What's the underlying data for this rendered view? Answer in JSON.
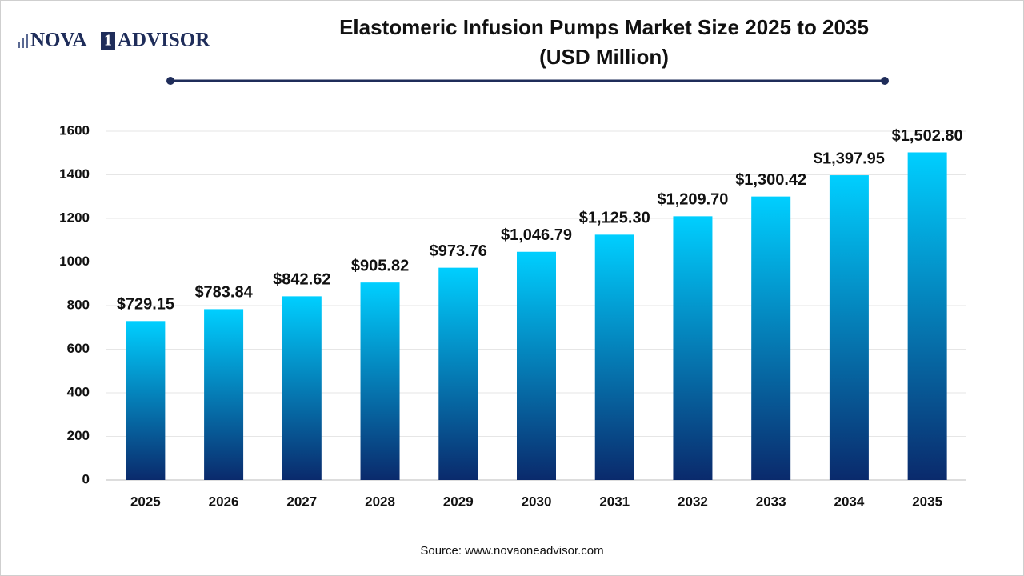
{
  "logo": {
    "left": "NOVA",
    "mark": "1",
    "right": "ADVISOR"
  },
  "chart_data": {
    "type": "bar",
    "title": "Elastomeric Infusion Pumps Market Size 2025 to 2035",
    "subtitle": "(USD Million)",
    "categories": [
      "2025",
      "2026",
      "2027",
      "2028",
      "2029",
      "2030",
      "2031",
      "2032",
      "2033",
      "2034",
      "2035"
    ],
    "values": [
      729.15,
      783.84,
      842.62,
      905.82,
      973.76,
      1046.79,
      1125.3,
      1209.7,
      1300.42,
      1397.95,
      1502.8
    ],
    "value_labels": [
      "$729.15",
      "$783.84",
      "$842.62",
      "$905.82",
      "$973.76",
      "$1,046.79",
      "$1,125.30",
      "$1,209.70",
      "$1,300.42",
      "$1,397.95",
      "$1,502.80"
    ],
    "gradient": [
      "#00cfff",
      "#0a2a6c"
    ],
    "ylim": [
      0,
      1600
    ],
    "yticks": [
      0,
      200,
      400,
      600,
      800,
      1000,
      1200,
      1400,
      1600
    ],
    "grid": true,
    "source": "Source: www.novaoneadvisor.com"
  }
}
